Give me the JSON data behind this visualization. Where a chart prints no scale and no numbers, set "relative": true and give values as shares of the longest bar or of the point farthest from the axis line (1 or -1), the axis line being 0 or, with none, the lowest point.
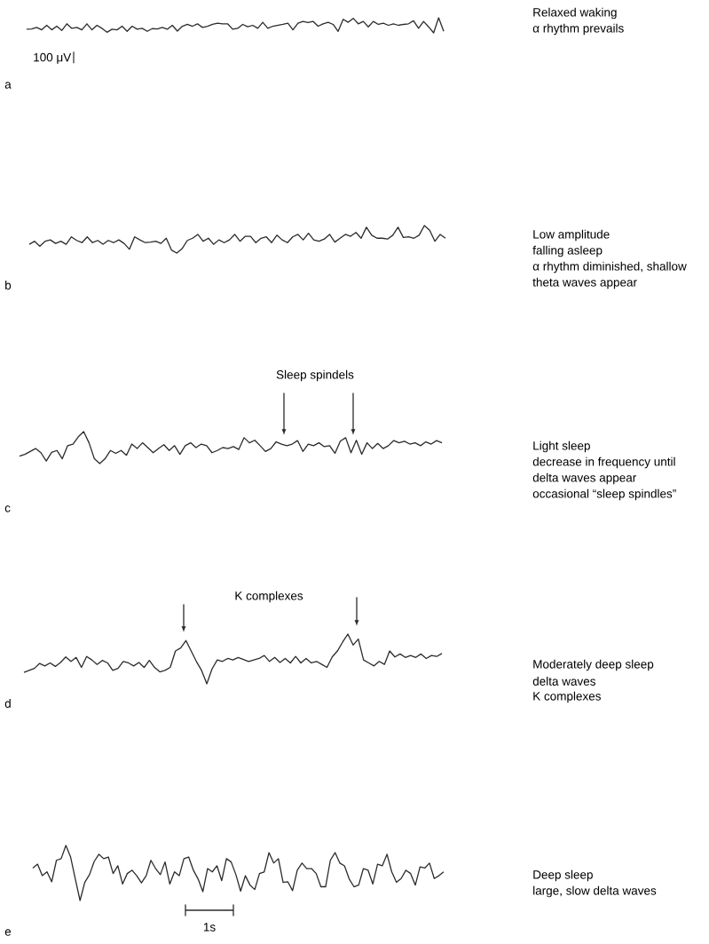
{
  "chart_data": [
    {
      "type": "line",
      "relative": true,
      "title": "a",
      "color": "#2b2b2b",
      "annotations": [
        "100 μV",
        "Relaxed waking",
        "α rhythm prevails"
      ],
      "categories": [
        null,
        null,
        null,
        null,
        null,
        null,
        null,
        null,
        null,
        null,
        null,
        null,
        null,
        null,
        null,
        null,
        null,
        null,
        null,
        null,
        null,
        null,
        null,
        null,
        null,
        null,
        null,
        null,
        null,
        null,
        null,
        null,
        null,
        null,
        null,
        null,
        null,
        null,
        null,
        null,
        null,
        null,
        null,
        null,
        null,
        null,
        null,
        null,
        null,
        null,
        null,
        null,
        null,
        null,
        null,
        null,
        null,
        null,
        null,
        null,
        null,
        null,
        null,
        null,
        null,
        null,
        null,
        null,
        null,
        null,
        null,
        null,
        null,
        null,
        null,
        null,
        null,
        null,
        null,
        null,
        null,
        null,
        null,
        null
      ],
      "values": [
        0.24,
        0.26,
        0.36,
        0.2,
        0.5,
        0.2,
        0.44,
        0.16,
        0.6,
        0.3,
        0.36,
        0.2,
        0.6,
        0.2,
        0.5,
        0.3,
        0.04,
        0.24,
        0.2,
        0.44,
        0.1,
        0.44,
        0.24,
        0.3,
        0.1,
        0.28,
        0.26,
        0.36,
        0.24,
        0.5,
        0.12,
        0.44,
        0.56,
        0.44,
        0.6,
        0.36,
        0.44,
        0.56,
        0.64,
        0.6,
        0.6,
        0.24,
        0.3,
        0.56,
        0.4,
        0.5,
        0.3,
        0.7,
        0.3,
        0.44,
        0.5,
        0.56,
        0.64,
        0.2,
        0.64,
        0.76,
        0.68,
        0.76,
        0.44,
        0.6,
        0.7,
        0.56,
        0.1,
        0.9,
        0.7,
        0.96,
        0.6,
        0.76,
        0.4,
        0.76,
        0.56,
        0.64,
        0.5,
        0.6,
        0.5,
        0.56,
        0.6,
        0.8,
        0.3,
        0.76,
        0.4,
        0,
        1,
        0.1
      ]
    },
    {
      "type": "line",
      "relative": true,
      "title": "b",
      "color": "#2b2b2b",
      "annotations": [
        "Low amplitude",
        "falling asleep",
        "α rhythm diminished, shallow",
        "theta waves appear"
      ],
      "categories": [
        null,
        null,
        null,
        null,
        null,
        null,
        null,
        null,
        null,
        null,
        null,
        null,
        null,
        null,
        null,
        null,
        null,
        null,
        null,
        null,
        null,
        null,
        null,
        null,
        null,
        null,
        null,
        null,
        null,
        null,
        null,
        null,
        null,
        null,
        null,
        null,
        null,
        null,
        null,
        null,
        null,
        null,
        null,
        null,
        null,
        null,
        null,
        null,
        null,
        null,
        null,
        null,
        null,
        null,
        null,
        null,
        null,
        null,
        null,
        null,
        null,
        null,
        null,
        null,
        null,
        null,
        null,
        null,
        null,
        null,
        null,
        null,
        null,
        null,
        null,
        null,
        null,
        null,
        null,
        null
      ],
      "values": [
        0.32,
        0.43,
        0.25,
        0.43,
        0.48,
        0.35,
        0.43,
        0.32,
        0.59,
        0.46,
        0.38,
        0.59,
        0.38,
        0.46,
        0.32,
        0.46,
        0.38,
        0.48,
        0.35,
        0.14,
        0.59,
        0.48,
        0.38,
        0.4,
        0.43,
        0.35,
        0.54,
        0.11,
        0,
        0.16,
        0.46,
        0.54,
        0.68,
        0.43,
        0.54,
        0.32,
        0.48,
        0.38,
        0.48,
        0.68,
        0.43,
        0.61,
        0.61,
        0.38,
        0.54,
        0.59,
        0.38,
        0.65,
        0.48,
        0.38,
        0.59,
        0.68,
        0.48,
        0.72,
        0.48,
        0.43,
        0.51,
        0.68,
        0.4,
        0.54,
        0.68,
        0.61,
        0.75,
        0.54,
        0.94,
        0.65,
        0.54,
        0.54,
        0.51,
        0.65,
        0.94,
        0.57,
        0.59,
        0.54,
        0.65,
        1,
        0.83,
        0.43,
        0.68,
        0.54
      ]
    },
    {
      "type": "line",
      "relative": true,
      "title": "c",
      "color": "#2b2b2b",
      "annotations": [
        "Sleep spindels",
        "Light sleep",
        "decrease in frequency until",
        "delta waves appear",
        "occasional “sleep spindles”"
      ],
      "categories": [
        null,
        null,
        null,
        null,
        null,
        null,
        null,
        null,
        null,
        null,
        null,
        null,
        null,
        null,
        null,
        null,
        null,
        null,
        null,
        null,
        null,
        null,
        null,
        null,
        null,
        null,
        null,
        null,
        null,
        null,
        null,
        null,
        null,
        null,
        null,
        null,
        null,
        null,
        null,
        null,
        null,
        null,
        null,
        null,
        null,
        null,
        null,
        null,
        null,
        null,
        null,
        null,
        null,
        null,
        null,
        null,
        null,
        null,
        null,
        null,
        null,
        null,
        null,
        null,
        null,
        null,
        null,
        null,
        null,
        null,
        null,
        null,
        null,
        null,
        null,
        null,
        null,
        null,
        null,
        null
      ],
      "values": [
        0.23,
        0.29,
        0.38,
        0.47,
        0.34,
        0.08,
        0.35,
        0.41,
        0.15,
        0.56,
        0.61,
        0.84,
        1,
        0.65,
        0.15,
        0,
        0.15,
        0.41,
        0.32,
        0.41,
        0.26,
        0.61,
        0.47,
        0.65,
        0.5,
        0.34,
        0.47,
        0.59,
        0.41,
        0.56,
        0.29,
        0.56,
        0.65,
        0.5,
        0.61,
        0.56,
        0.34,
        0.41,
        0.5,
        0.47,
        0.53,
        0.44,
        0.81,
        0.65,
        0.73,
        0.56,
        0.38,
        0.47,
        0.68,
        0.61,
        0.56,
        0.61,
        0.72,
        0.38,
        0.61,
        0.56,
        0.65,
        0.53,
        0.56,
        0.32,
        0.7,
        0.81,
        0.34,
        0.73,
        0.29,
        0.65,
        0.47,
        0.63,
        0.47,
        0.56,
        0.72,
        0.65,
        0.7,
        0.61,
        0.65,
        0.56,
        0.68,
        0.61,
        0.72,
        0.65
      ]
    },
    {
      "type": "line",
      "relative": true,
      "title": "d",
      "color": "#2b2b2b",
      "annotations": [
        "K complexes",
        "Moderately deep sleep",
        "delta waves",
        "K complexes"
      ],
      "categories": [
        null,
        null,
        null,
        null,
        null,
        null,
        null,
        null,
        null,
        null,
        null,
        null,
        null,
        null,
        null,
        null,
        null,
        null,
        null,
        null,
        null,
        null,
        null,
        null,
        null,
        null,
        null,
        null,
        null,
        null,
        null,
        null,
        null,
        null,
        null,
        null,
        null,
        null,
        null,
        null,
        null,
        null,
        null,
        null,
        null,
        null,
        null,
        null,
        null,
        null,
        null,
        null,
        null,
        null,
        null,
        null,
        null,
        null,
        null,
        null,
        null,
        null,
        null,
        null,
        null,
        null,
        null,
        null,
        null,
        null,
        null,
        null,
        null,
        null,
        null,
        null,
        null,
        null,
        null,
        null,
        null
      ],
      "values": [
        0.23,
        0.27,
        0.31,
        0.41,
        0.36,
        0.42,
        0.35,
        0.43,
        0.54,
        0.45,
        0.53,
        0.33,
        0.55,
        0.48,
        0.39,
        0.47,
        0.42,
        0.27,
        0.31,
        0.45,
        0.42,
        0.36,
        0.43,
        0.33,
        0.47,
        0.33,
        0.24,
        0.27,
        0.33,
        0.66,
        0.72,
        0.87,
        0.66,
        0.45,
        0.27,
        0,
        0.3,
        0.48,
        0.45,
        0.51,
        0.48,
        0.53,
        0.49,
        0.45,
        0.48,
        0.51,
        0.57,
        0.45,
        0.53,
        0.43,
        0.51,
        0.42,
        0.55,
        0.42,
        0.51,
        0.42,
        0.45,
        0.39,
        0.33,
        0.54,
        0.66,
        0.84,
        1,
        0.78,
        0.9,
        0.48,
        0.42,
        0.36,
        0.45,
        0.39,
        0.66,
        0.54,
        0.6,
        0.53,
        0.57,
        0.53,
        0.6,
        0.51,
        0.57,
        0.55,
        0.61
      ]
    },
    {
      "type": "line",
      "relative": true,
      "title": "e",
      "color": "#2b2b2b",
      "annotations": [
        "1s",
        "Deep sleep",
        "large, slow delta waves"
      ],
      "categories": [
        null,
        null,
        null,
        null,
        null,
        null,
        null,
        null,
        null,
        null,
        null,
        null,
        null,
        null,
        null,
        null,
        null,
        null,
        null,
        null,
        null,
        null,
        null,
        null,
        null,
        null,
        null,
        null,
        null,
        null,
        null,
        null,
        null,
        null,
        null,
        null,
        null,
        null,
        null,
        null,
        null,
        null,
        null,
        null,
        null,
        null,
        null,
        null,
        null,
        null,
        null,
        null,
        null,
        null,
        null,
        null,
        null,
        null,
        null,
        null,
        null,
        null,
        null,
        null,
        null,
        null,
        null,
        null,
        null,
        null,
        null,
        null,
        null,
        null,
        null,
        null,
        null,
        null,
        null,
        null,
        null,
        null,
        null,
        null,
        null,
        null,
        null,
        null
      ],
      "values": [
        0.59,
        0.66,
        0.45,
        0.52,
        0.34,
        0.73,
        0.76,
        1,
        0.79,
        0.39,
        0,
        0.33,
        0.47,
        0.71,
        0.84,
        0.76,
        0.79,
        0.49,
        0.63,
        0.3,
        0.49,
        0.55,
        0.45,
        0.32,
        0.45,
        0.73,
        0.58,
        0.47,
        0.7,
        0.3,
        0.52,
        0.45,
        0.76,
        0.79,
        0.55,
        0.39,
        0.16,
        0.58,
        0.52,
        0.63,
        0.36,
        0.76,
        0.7,
        0.47,
        0.17,
        0.45,
        0.28,
        0.2,
        0.49,
        0.52,
        0.87,
        0.68,
        0.76,
        0.33,
        0.34,
        0.18,
        0.55,
        0.68,
        0.58,
        0.58,
        0.49,
        0.25,
        0.25,
        0.73,
        0.87,
        0.68,
        0.63,
        0.39,
        0.25,
        0.28,
        0.58,
        0.55,
        0.3,
        0.66,
        0.63,
        0.84,
        0.52,
        0.33,
        0.4,
        0.55,
        0.49,
        0.28,
        0.61,
        0.59,
        0.68,
        0.4,
        0.45,
        0.52
      ]
    }
  ]
}
